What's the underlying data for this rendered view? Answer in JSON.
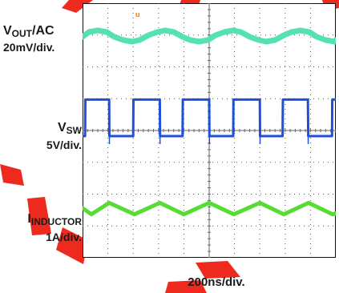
{
  "labels": {
    "vout_main": "V",
    "vout_sub": "OUT",
    "vout_suffix": "/AC",
    "vout_scale": "20mV/div.",
    "vsw_main": "V",
    "vsw_sub": "SW",
    "vsw_scale": "5V/div.",
    "il_main": "I",
    "il_sub": "INDUCTOR",
    "il_scale": "1A/div.",
    "timebase": "200ns/div."
  },
  "chart_data": {
    "type": "line",
    "xlabel": "200ns/div.",
    "x_unit": "ns",
    "x_range": [
      0,
      2000
    ],
    "grid": {
      "on": true,
      "divisions_x": 10,
      "divisions_y": 8
    },
    "series": [
      {
        "name": "VOUT/AC",
        "scale": "20mV/div.",
        "color": "#55e0b5",
        "t": [
          0,
          50,
          120,
          190,
          250,
          320,
          390,
          450,
          520,
          590,
          650,
          720,
          790,
          850,
          920,
          990,
          1050,
          1120,
          1190,
          1250,
          1320,
          1390,
          1450,
          1520,
          1590,
          1650,
          1720,
          1790,
          1850,
          1920,
          1990,
          2000
        ],
        "v": [
          0,
          6,
          8,
          6,
          0,
          -4,
          -6,
          -4,
          2,
          6,
          8,
          6,
          0,
          -4,
          -6,
          -4,
          2,
          6,
          8,
          6,
          0,
          -4,
          -6,
          -4,
          2,
          6,
          8,
          6,
          0,
          -4,
          -6,
          -4
        ]
      },
      {
        "name": "VSW",
        "scale": "5V/div.",
        "color": "#1e50d8",
        "t": [
          0,
          20,
          22,
          210,
          212,
          400,
          402,
          610,
          612,
          790,
          792,
          1000,
          1002,
          1190,
          1192,
          1400,
          1402,
          1580,
          1582,
          1780,
          1782,
          1970,
          1972,
          2000
        ],
        "v": [
          0,
          0,
          12,
          12,
          0,
          0,
          12,
          12,
          0,
          0,
          12,
          12,
          0,
          0,
          12,
          12,
          0,
          0,
          12,
          12,
          0,
          0,
          12,
          12
        ]
      },
      {
        "name": "IINDUCTOR",
        "scale": "1A/div.",
        "color": "#55dd33",
        "t": [
          0,
          70,
          210,
          410,
          610,
          800,
          1000,
          1195,
          1400,
          1590,
          1785,
          1975,
          2000
        ],
        "v": [
          0,
          -0.35,
          0.3,
          -0.35,
          0.3,
          -0.35,
          0.3,
          -0.35,
          0.3,
          -0.35,
          0.3,
          -0.35,
          -0.3
        ]
      }
    ]
  }
}
